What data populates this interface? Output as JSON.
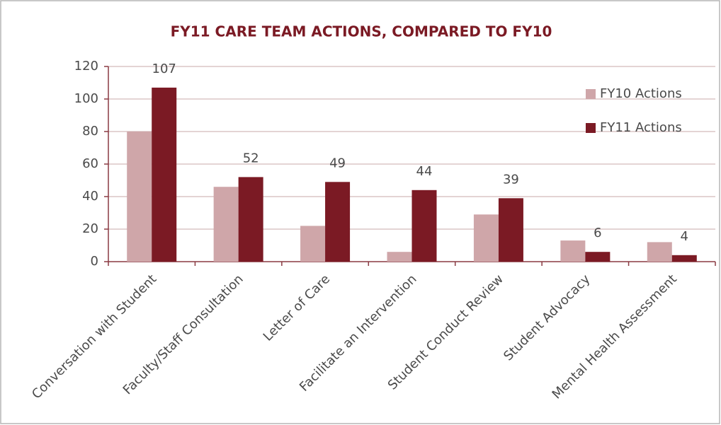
{
  "chart_data": {
    "type": "bar",
    "title": "FY11 CARE TEAM ACTIONS, COMPARED TO FY10",
    "categories": [
      "Conversation with Student",
      "Faculty/Staff Consultation",
      "Letter of Care",
      "Facilitate an Intervention",
      "Student Conduct Review",
      "Student Advocacy",
      "Mental Health Assessment"
    ],
    "series": [
      {
        "name": "FY10 Actions",
        "color": "#cfa6a9",
        "values": [
          80,
          46,
          22,
          6,
          29,
          13,
          12
        ],
        "data_labels": false
      },
      {
        "name": "FY11 Actions",
        "color": "#7b1a24",
        "values": [
          107,
          52,
          49,
          44,
          39,
          6,
          4
        ],
        "data_labels": true
      }
    ],
    "ylim": [
      0,
      120
    ],
    "yticks": [
      0,
      20,
      40,
      60,
      80,
      100,
      120
    ],
    "grid": true,
    "legend": "upper right"
  }
}
